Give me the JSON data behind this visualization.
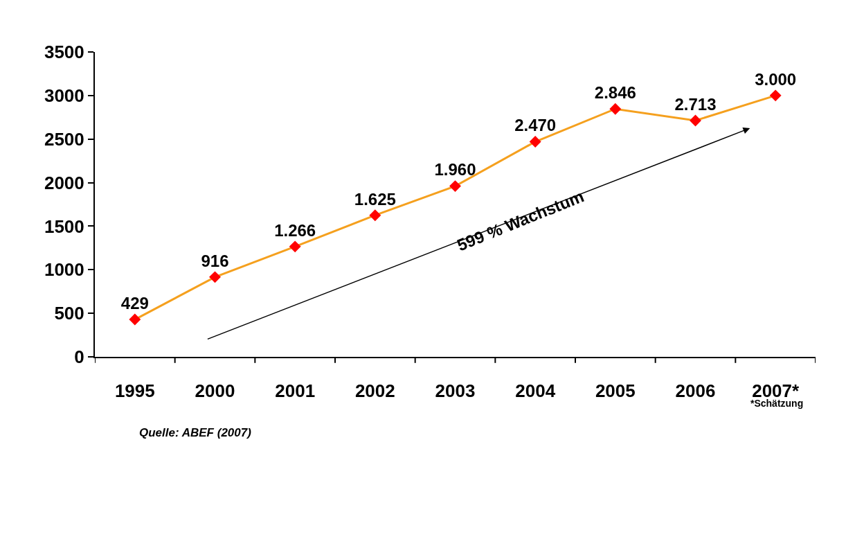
{
  "chart_data": {
    "type": "line",
    "categories": [
      "1995",
      "2000",
      "2001",
      "2002",
      "2003",
      "2004",
      "2005",
      "2006",
      "2007*"
    ],
    "series": [
      {
        "color": "#f5a01e",
        "values": [
          429,
          916,
          1266,
          1625,
          1960,
          2470,
          2846,
          2713,
          3000
        ],
        "value_labels": [
          "429",
          "916",
          "1.266",
          "1.625",
          "1.960",
          "2.470",
          "2.846",
          "2.713",
          "3.000"
        ]
      }
    ],
    "ylim": [
      0,
      3500
    ],
    "yticks": [
      0,
      500,
      1000,
      1500,
      2000,
      2500,
      3000,
      3500
    ],
    "marker": "diamond",
    "line_style": "solid",
    "annotations": [
      "599 % Wachstum",
      "*Schätzung",
      "Quelle: ABEF (2007)"
    ]
  }
}
